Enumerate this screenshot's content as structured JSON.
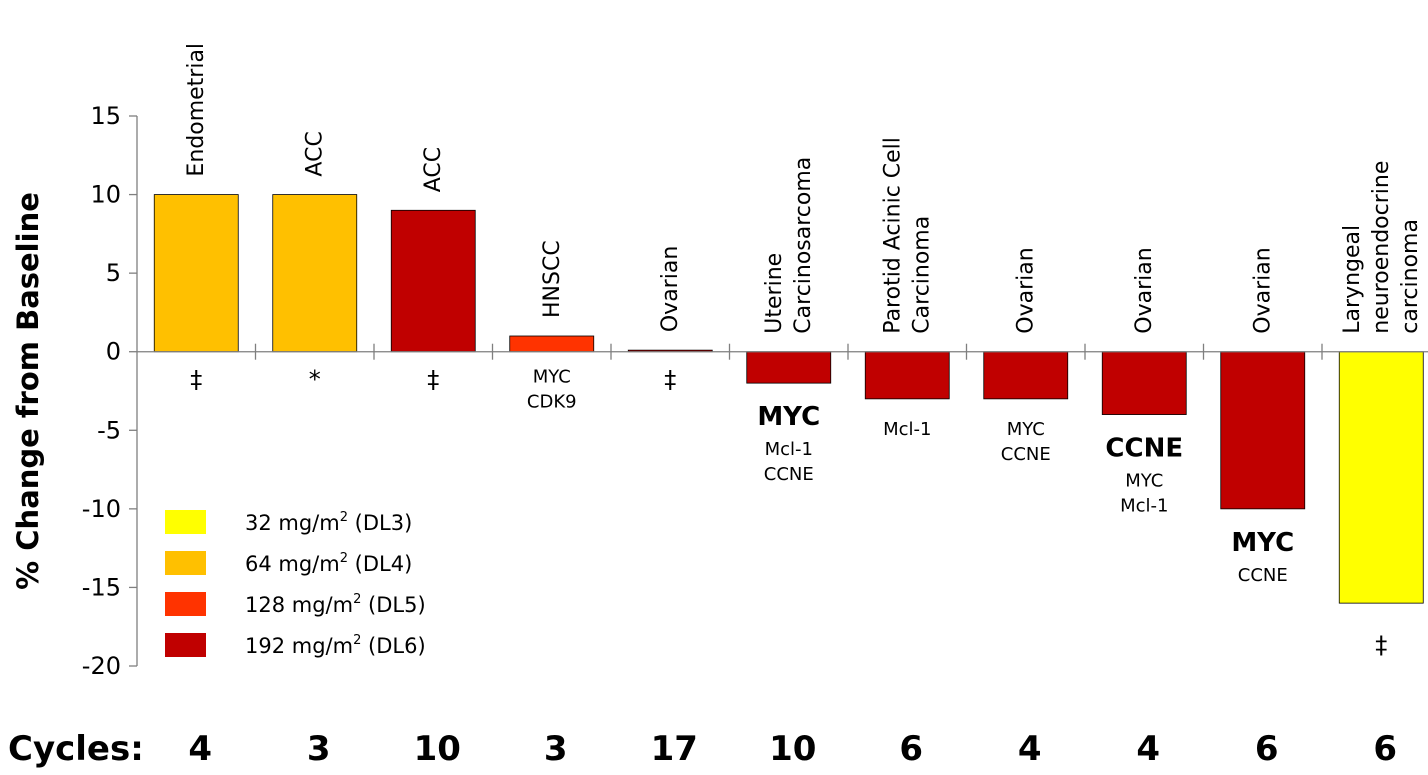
{
  "chart_data": {
    "type": "bar",
    "ylabel": "% Change from Baseline",
    "ylim": [
      -20,
      15
    ],
    "yticks": [
      15,
      10,
      5,
      0,
      -5,
      -10,
      -15,
      -20
    ],
    "colors": {
      "DL3": "#ffff00",
      "DL4": "#ffc000",
      "DL5": "#ff3300",
      "DL6": "#c00000"
    },
    "categories": [
      {
        "label": [
          "Endometrial"
        ],
        "value": 10,
        "dose": "DL4",
        "annotations": [
          {
            "text": "‡",
            "bold": false
          }
        ],
        "cycles": "4"
      },
      {
        "label": [
          "ACC"
        ],
        "value": 10,
        "dose": "DL4",
        "annotations": [
          {
            "text": "*",
            "bold": false
          }
        ],
        "cycles": "3"
      },
      {
        "label": [
          "ACC"
        ],
        "value": 9,
        "dose": "DL6",
        "annotations": [
          {
            "text": "‡",
            "bold": false
          }
        ],
        "cycles": "10"
      },
      {
        "label": [
          "HNSCC"
        ],
        "value": 1,
        "dose": "DL5",
        "annotations": [
          {
            "text": "MYC",
            "bold": false
          },
          {
            "text": "CDK9",
            "bold": false
          }
        ],
        "cycles": "3"
      },
      {
        "label": [
          "Ovarian"
        ],
        "value": 0.1,
        "dose": "DL6",
        "annotations": [
          {
            "text": "‡",
            "bold": false
          }
        ],
        "cycles": "17"
      },
      {
        "label": [
          "Uterine",
          "Carcinosarcoma"
        ],
        "value": -2,
        "dose": "DL6",
        "annotations": [
          {
            "text": "MYC",
            "bold": true
          },
          {
            "text": "Mcl-1",
            "bold": false
          },
          {
            "text": "CCNE",
            "bold": false
          }
        ],
        "cycles": "10"
      },
      {
        "label": [
          "Parotid Acinic Cell",
          "Carcinoma"
        ],
        "value": -3,
        "dose": "DL6",
        "annotations": [
          {
            "text": "Mcl-1",
            "bold": false
          }
        ],
        "cycles": "6"
      },
      {
        "label": [
          "Ovarian"
        ],
        "value": -3,
        "dose": "DL6",
        "annotations": [
          {
            "text": "MYC",
            "bold": false
          },
          {
            "text": "CCNE",
            "bold": false
          }
        ],
        "cycles": "4"
      },
      {
        "label": [
          "Ovarian"
        ],
        "value": -4,
        "dose": "DL6",
        "annotations": [
          {
            "text": "CCNE",
            "bold": true
          },
          {
            "text": "MYC",
            "bold": false
          },
          {
            "text": "Mcl-1",
            "bold": false
          }
        ],
        "cycles": "4"
      },
      {
        "label": [
          "Ovarian"
        ],
        "value": -10,
        "dose": "DL6",
        "annotations": [
          {
            "text": "MYC",
            "bold": true
          },
          {
            "text": "CCNE",
            "bold": false
          }
        ],
        "cycles": "6"
      },
      {
        "label": [
          "Laryngeal",
          "neuroendocrine",
          "carcinoma"
        ],
        "value": -16,
        "dose": "DL3",
        "annotations": [
          {
            "text": "‡",
            "bold": false
          }
        ],
        "cycles": "6"
      }
    ],
    "legend": [
      {
        "key": "DL3",
        "prefix": "32 mg/m",
        "sup": "2",
        "suffix": " (DL3)"
      },
      {
        "key": "DL4",
        "prefix": "64 mg/m",
        "sup": "2",
        "suffix": " (DL4)"
      },
      {
        "key": "DL5",
        "prefix": "128 mg/m",
        "sup": "2",
        "suffix": " (DL5)"
      },
      {
        "key": "DL6",
        "prefix": "192 mg/m",
        "sup": "2",
        "suffix": " (DL6)"
      }
    ],
    "cycles_label": "Cycles:"
  }
}
